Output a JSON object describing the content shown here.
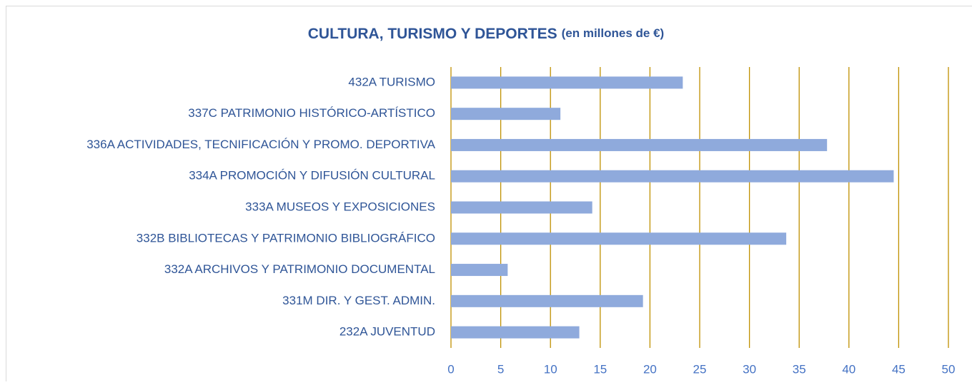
{
  "chart_data": {
    "type": "bar",
    "orientation": "horizontal",
    "title": "CULTURA, TURISMO Y DEPORTES",
    "subtitle": "(en millones de €)",
    "categories": [
      "432A TURISMO",
      "337C PATRIMONIO HISTÓRICO-ARTÍSTICO",
      "336A ACTIVIDADES, TECNIFICACIÓN Y PROMO. DEPORTIVA",
      "334A PROMOCIÓN Y DIFUSIÓN CULTURAL",
      "333A MUSEOS Y EXPOSICIONES",
      "332B BIBLIOTECAS Y PATRIMONIO BIBLIOGRÁFICO",
      "332A ARCHIVOS Y PATRIMONIO DOCUMENTAL",
      "331M DIR. Y GEST. ADMIN.",
      "232A JUVENTUD"
    ],
    "values": [
      23.3,
      11.0,
      37.8,
      44.5,
      14.2,
      33.7,
      5.7,
      19.3,
      12.9
    ],
    "color": "#8faadc",
    "grid_color": "#bf9000",
    "xlim": [
      0,
      50
    ],
    "xticks": [
      0,
      5,
      10,
      15,
      20,
      25,
      30,
      35,
      40,
      45,
      50
    ],
    "grid": true
  }
}
